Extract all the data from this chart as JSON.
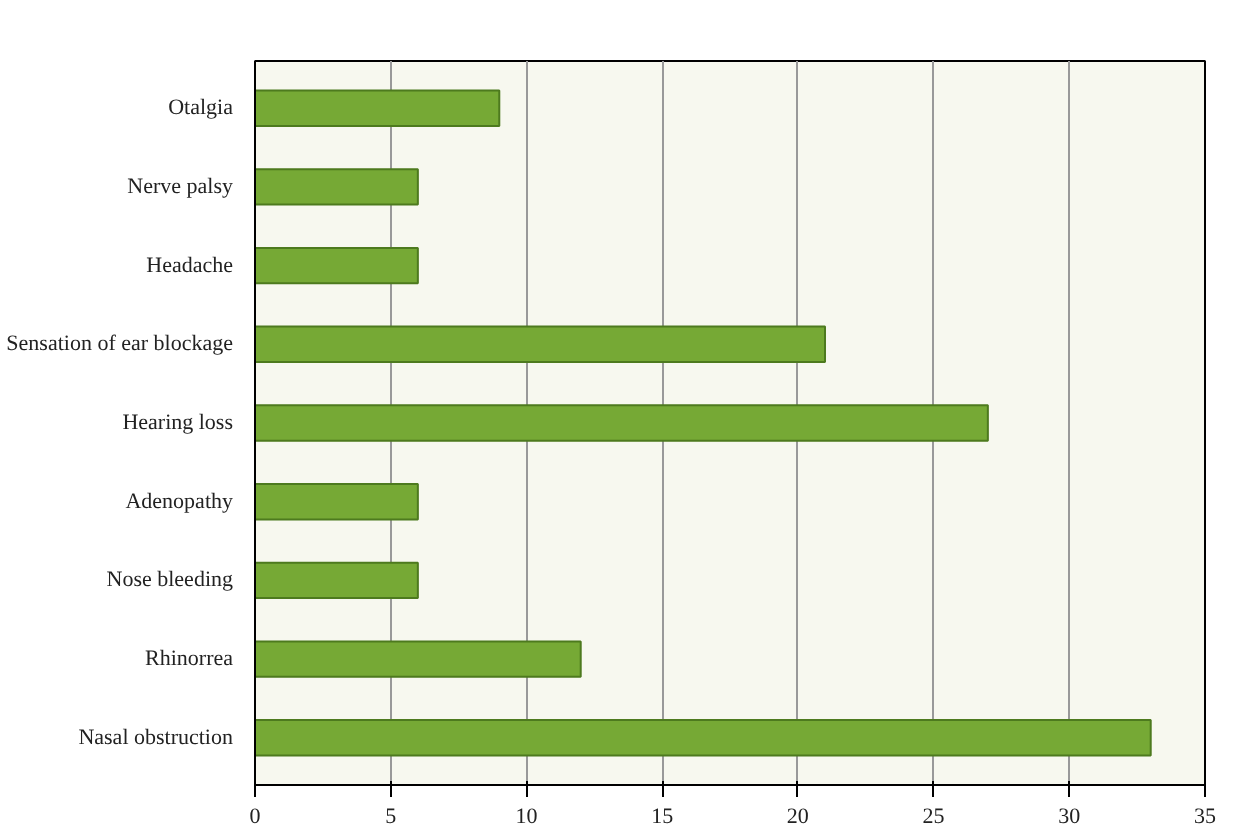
{
  "chart_data": {
    "type": "bar",
    "orientation": "horizontal",
    "categories": [
      "Otalgia",
      "Nerve palsy",
      "Headache",
      "Sensation of ear blockage",
      "Hearing loss",
      "Adenopathy",
      "Nose bleeding",
      "Rhinorrea",
      "Nasal obstruction"
    ],
    "values": [
      9,
      6,
      6,
      21,
      27,
      6,
      6,
      12,
      33
    ],
    "color": "#76a935",
    "xlim": [
      0,
      35
    ],
    "xticks": [
      0,
      5,
      10,
      15,
      20,
      25,
      30,
      35
    ],
    "grid": "x"
  }
}
